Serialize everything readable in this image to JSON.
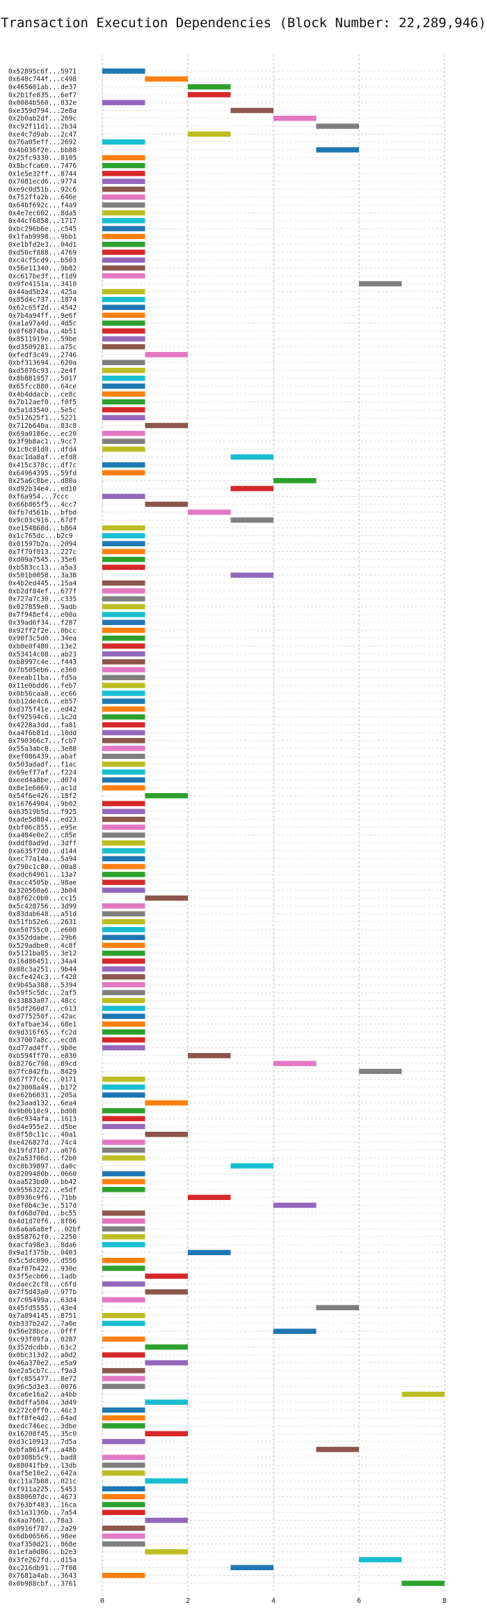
{
  "chart_data": {
    "type": "bar",
    "orientation": "horizontal",
    "title": "Transaction Execution Dependencies (Block Number: 22,289,946)",
    "xlabel": "",
    "ylabel": "",
    "xlim": [
      0,
      8
    ],
    "xticks": [
      0,
      2,
      4,
      6,
      8
    ],
    "grid": true,
    "palette": [
      "#1f77b4",
      "#ff7f0e",
      "#2ca02c",
      "#d62728",
      "#9467bd",
      "#8c564b",
      "#e377c2",
      "#7f7f7f",
      "#bcbd22",
      "#17becf"
    ],
    "transactions": [
      {
        "label": "0x52895c6f...5971",
        "start": 0,
        "end": 1
      },
      {
        "label": "0x640c744f...c498",
        "start": 1,
        "end": 2
      },
      {
        "label": "0x465601ab...de37",
        "start": 2,
        "end": 3
      },
      {
        "label": "0x2b1fe835...6ef7",
        "start": 2,
        "end": 3
      },
      {
        "label": "0x0084b560...832e",
        "start": 0,
        "end": 1
      },
      {
        "label": "0xe359d794...2e8a",
        "start": 3,
        "end": 4
      },
      {
        "label": "0x2b0ab2df...269c",
        "start": 4,
        "end": 5
      },
      {
        "label": "0xc92f11d1...2b34",
        "start": 5,
        "end": 6
      },
      {
        "label": "0xe4c7d9ab...2c47",
        "start": 2,
        "end": 3
      },
      {
        "label": "0x76a05eff...2692",
        "start": 0,
        "end": 1
      },
      {
        "label": "0x4b036f2e...bb88",
        "start": 5,
        "end": 6
      },
      {
        "label": "0x25fc9330...8105",
        "start": 0,
        "end": 1
      },
      {
        "label": "0x8bcfca60...7476",
        "start": 0,
        "end": 1
      },
      {
        "label": "0x1e5e32ff...8744",
        "start": 0,
        "end": 1
      },
      {
        "label": "0x7081ecd6...9774",
        "start": 0,
        "end": 1
      },
      {
        "label": "0xe9c0d51b...92c6",
        "start": 0,
        "end": 1
      },
      {
        "label": "0x752ffa2b...646e",
        "start": 0,
        "end": 1
      },
      {
        "label": "0x64bf692c...f4a9",
        "start": 0,
        "end": 1
      },
      {
        "label": "0x4e7ec602...8da5",
        "start": 0,
        "end": 1
      },
      {
        "label": "0x44cf6858...1717",
        "start": 0,
        "end": 1
      },
      {
        "label": "0xbc296b6e...c545",
        "start": 0,
        "end": 1
      },
      {
        "label": "0x1fab9998...9bb1",
        "start": 0,
        "end": 1
      },
      {
        "label": "0xe1bfd2e3...04d1",
        "start": 0,
        "end": 1
      },
      {
        "label": "0xd50cf888...4769",
        "start": 0,
        "end": 1
      },
      {
        "label": "0xc4cf5cd9...b503",
        "start": 0,
        "end": 1
      },
      {
        "label": "0x56e11340...9b82",
        "start": 0,
        "end": 1
      },
      {
        "label": "0xc617be3f...f1d9",
        "start": 0,
        "end": 1
      },
      {
        "label": "0x9fe4151a...3410",
        "start": 6,
        "end": 7
      },
      {
        "label": "0x44ad5b24...425a",
        "start": 0,
        "end": 1
      },
      {
        "label": "0x85d4c737...1874",
        "start": 0,
        "end": 1
      },
      {
        "label": "0x62c65f2d...4542",
        "start": 0,
        "end": 1
      },
      {
        "label": "0x7b4a94ff...9e6f",
        "start": 0,
        "end": 1
      },
      {
        "label": "0xa1a97a4d...4d5c",
        "start": 0,
        "end": 1
      },
      {
        "label": "0x0f6874ba...4b51",
        "start": 0,
        "end": 1
      },
      {
        "label": "0x8511919e...59be",
        "start": 0,
        "end": 1
      },
      {
        "label": "0xd3509281...a75c",
        "start": 0,
        "end": 1
      },
      {
        "label": "0xfedf3c49...2746",
        "start": 1,
        "end": 2
      },
      {
        "label": "0xbf313694...620a",
        "start": 0,
        "end": 1
      },
      {
        "label": "0xd5076c93...2e4f",
        "start": 0,
        "end": 1
      },
      {
        "label": "0x8b881957...5017",
        "start": 0,
        "end": 1
      },
      {
        "label": "0x65fcc880...64ce",
        "start": 0,
        "end": 1
      },
      {
        "label": "0x4b4ddacb...ce8c",
        "start": 0,
        "end": 1
      },
      {
        "label": "0x7b12aef0...f0f5",
        "start": 0,
        "end": 1
      },
      {
        "label": "0x5a1d3540...5e5c",
        "start": 0,
        "end": 1
      },
      {
        "label": "0x512625f1...5221",
        "start": 0,
        "end": 1
      },
      {
        "label": "0x712b640a...83c8",
        "start": 1,
        "end": 2
      },
      {
        "label": "0x69a0186e...ec20",
        "start": 0,
        "end": 1
      },
      {
        "label": "0x3f9b8ac1...9cc7",
        "start": 0,
        "end": 1
      },
      {
        "label": "0x1c0c01d0...dfd4",
        "start": 0,
        "end": 1
      },
      {
        "label": "0xac1da8af...efd8",
        "start": 3,
        "end": 4
      },
      {
        "label": "0x415c378c...df7c",
        "start": 0,
        "end": 1
      },
      {
        "label": "0x64964395...59fd",
        "start": 0,
        "end": 1
      },
      {
        "label": "0x25a6c8be...d80a",
        "start": 4,
        "end": 5
      },
      {
        "label": "0xd92b34e4...ed10",
        "start": 3,
        "end": 4
      },
      {
        "label": "0xf6a954...7ccc",
        "start": 0,
        "end": 1
      },
      {
        "label": "0x66b865f5...4cc7",
        "start": 1,
        "end": 2
      },
      {
        "label": "0xfb7d561b...bfbd",
        "start": 2,
        "end": 3
      },
      {
        "label": "0x9c03c916...67df",
        "start": 3,
        "end": 4
      },
      {
        "label": "0xe154868d...b864",
        "start": 0,
        "end": 1
      },
      {
        "label": "0x1c765dc...b2c9",
        "start": 0,
        "end": 1
      },
      {
        "label": "0x01597b2a...2094",
        "start": 0,
        "end": 1
      },
      {
        "label": "0x7f79f013...227c",
        "start": 0,
        "end": 1
      },
      {
        "label": "0xd09a7545...35e6",
        "start": 0,
        "end": 1
      },
      {
        "label": "0xb583cc13...a5a3",
        "start": 0,
        "end": 1
      },
      {
        "label": "0x501b0058...3a38",
        "start": 3,
        "end": 4
      },
      {
        "label": "0x4b2ed445...15a4",
        "start": 0,
        "end": 1
      },
      {
        "label": "0xb2df84ef...677f",
        "start": 0,
        "end": 1
      },
      {
        "label": "0x727a7c30...c335",
        "start": 0,
        "end": 1
      },
      {
        "label": "0x027859e0...9adb",
        "start": 0,
        "end": 1
      },
      {
        "label": "0x7f948ef4...e00a",
        "start": 0,
        "end": 1
      },
      {
        "label": "0x39ad6f34...f287",
        "start": 0,
        "end": 1
      },
      {
        "label": "0x92ff2f2e...0bcc",
        "start": 0,
        "end": 1
      },
      {
        "label": "0x90f3c5d0...34ea",
        "start": 0,
        "end": 1
      },
      {
        "label": "0xb0e0f480...13e2",
        "start": 0,
        "end": 1
      },
      {
        "label": "0x53414c08...ab23",
        "start": 0,
        "end": 1
      },
      {
        "label": "0xb8997c4e...f443",
        "start": 0,
        "end": 1
      },
      {
        "label": "0x7b505eb6...e360",
        "start": 0,
        "end": 1
      },
      {
        "label": "0xeeab11ba...fd5a",
        "start": 0,
        "end": 1
      },
      {
        "label": "0x11e0bdd6...feb7",
        "start": 0,
        "end": 1
      },
      {
        "label": "0x0b56caa8...ec66",
        "start": 0,
        "end": 1
      },
      {
        "label": "0xb12de4c6...eb57",
        "start": 0,
        "end": 1
      },
      {
        "label": "0xd375f41e...ed42",
        "start": 0,
        "end": 1
      },
      {
        "label": "0xf92594c6...1c2d",
        "start": 0,
        "end": 1
      },
      {
        "label": "0x4228a3dd...fa81",
        "start": 0,
        "end": 1
      },
      {
        "label": "0xa4f6b81d...10dd",
        "start": 0,
        "end": 1
      },
      {
        "label": "0x790366c7...fcb7",
        "start": 0,
        "end": 1
      },
      {
        "label": "0x55a3abc8...3e88",
        "start": 0,
        "end": 1
      },
      {
        "label": "0xef086439...abaf",
        "start": 0,
        "end": 1
      },
      {
        "label": "0x503adadf...f1ac",
        "start": 0,
        "end": 1
      },
      {
        "label": "0x69eff7af...f224",
        "start": 0,
        "end": 1
      },
      {
        "label": "0xeed4a8be...d074",
        "start": 0,
        "end": 1
      },
      {
        "label": "0x8e1e6069...ac1d",
        "start": 0,
        "end": 1
      },
      {
        "label": "0x54f6e426...18f2",
        "start": 1,
        "end": 2
      },
      {
        "label": "0x16764904...9b02",
        "start": 0,
        "end": 1
      },
      {
        "label": "0x63519b5d...f925",
        "start": 0,
        "end": 1
      },
      {
        "label": "0xade5d884...ed23",
        "start": 0,
        "end": 1
      },
      {
        "label": "0xbf06c855...e95e",
        "start": 0,
        "end": 1
      },
      {
        "label": "0xa484e0e2...c85e",
        "start": 0,
        "end": 1
      },
      {
        "label": "0xddf8ad9d...3dff",
        "start": 0,
        "end": 1
      },
      {
        "label": "0xa635f7d0...d144",
        "start": 0,
        "end": 1
      },
      {
        "label": "0xec77a14a...5a94",
        "start": 0,
        "end": 1
      },
      {
        "label": "0x790c1c80...00a8",
        "start": 0,
        "end": 1
      },
      {
        "label": "0xadc64961...13a7",
        "start": 0,
        "end": 1
      },
      {
        "label": "0xacc4505b...98ae",
        "start": 0,
        "end": 1
      },
      {
        "label": "0x320560a6...3b04",
        "start": 0,
        "end": 1
      },
      {
        "label": "0x8f62c0b0...cc15",
        "start": 1,
        "end": 2
      },
      {
        "label": "0x5c428756...3d99",
        "start": 0,
        "end": 1
      },
      {
        "label": "0x83dab648...a51d",
        "start": 0,
        "end": 1
      },
      {
        "label": "0x51fb52e6...2631",
        "start": 0,
        "end": 1
      },
      {
        "label": "0xe50755c0...e600",
        "start": 0,
        "end": 1
      },
      {
        "label": "0x352ddabe...29b6",
        "start": 0,
        "end": 1
      },
      {
        "label": "0x529adbe0...4c8f",
        "start": 0,
        "end": 1
      },
      {
        "label": "0x5121ba85...3e12",
        "start": 0,
        "end": 1
      },
      {
        "label": "0x16d86451...34a4",
        "start": 0,
        "end": 1
      },
      {
        "label": "0x08c3a251...9b44",
        "start": 0,
        "end": 1
      },
      {
        "label": "0xcfe424c3...f428",
        "start": 0,
        "end": 1
      },
      {
        "label": "0x9b45a388...5394",
        "start": 0,
        "end": 1
      },
      {
        "label": "0x59f5c5dc...2af5",
        "start": 0,
        "end": 1
      },
      {
        "label": "0x33883a07...48cc",
        "start": 0,
        "end": 1
      },
      {
        "label": "0x5df260d7...c613",
        "start": 0,
        "end": 1
      },
      {
        "label": "0xd775250f...42ac",
        "start": 0,
        "end": 1
      },
      {
        "label": "0xfafbae34...68e1",
        "start": 0,
        "end": 1
      },
      {
        "label": "0x9d316f65...fc2d",
        "start": 0,
        "end": 1
      },
      {
        "label": "0x37007a8c...ecd8",
        "start": 0,
        "end": 1
      },
      {
        "label": "0xd77ad4ff...9b0e",
        "start": 0,
        "end": 1
      },
      {
        "label": "0xb594ff70...e830",
        "start": 2,
        "end": 3
      },
      {
        "label": "0x8276c798...89cd",
        "start": 4,
        "end": 5
      },
      {
        "label": "0x7fc042fb...8429",
        "start": 6,
        "end": 7
      },
      {
        "label": "0x67f77c6c...0171",
        "start": 0,
        "end": 1
      },
      {
        "label": "0x23008a49...b172",
        "start": 0,
        "end": 1
      },
      {
        "label": "0xe62b6031...205a",
        "start": 0,
        "end": 1
      },
      {
        "label": "0x23aad132...6ea4",
        "start": 1,
        "end": 2
      },
      {
        "label": "0x9b0b10c9...bd08",
        "start": 0,
        "end": 1
      },
      {
        "label": "0x6c934afa...1613",
        "start": 0,
        "end": 1
      },
      {
        "label": "0xd4e955e2...d5be",
        "start": 0,
        "end": 1
      },
      {
        "label": "0x0f58c11c...40a1",
        "start": 1,
        "end": 2
      },
      {
        "label": "0xe426827d...74c4",
        "start": 0,
        "end": 1
      },
      {
        "label": "0x19fd7107...a676",
        "start": 0,
        "end": 1
      },
      {
        "label": "0x2a53f06d...f2b0",
        "start": 0,
        "end": 1
      },
      {
        "label": "0xc0b39897...da0c",
        "start": 3,
        "end": 4
      },
      {
        "label": "0x8209480b...0660",
        "start": 0,
        "end": 1
      },
      {
        "label": "0xaa523bd0...bb42",
        "start": 0,
        "end": 1
      },
      {
        "label": "0x95563222...e5df",
        "start": 0,
        "end": 1
      },
      {
        "label": "0x8936c9f6...71bb",
        "start": 2,
        "end": 3
      },
      {
        "label": "0xef0b4c3e...517d",
        "start": 4,
        "end": 5
      },
      {
        "label": "0xfd68d70d...bc55",
        "start": 0,
        "end": 1
      },
      {
        "label": "0x4d1d70f6...8f86",
        "start": 0,
        "end": 1
      },
      {
        "label": "0x6a6a6a8ef...02bf",
        "start": 0,
        "end": 1
      },
      {
        "label": "0x858762f0...2250",
        "start": 0,
        "end": 1
      },
      {
        "label": "0xacfa98e3...8da6",
        "start": 0,
        "end": 1
      },
      {
        "label": "0x9a1f375b...0403",
        "start": 2,
        "end": 3
      },
      {
        "label": "0x5c5dc090...d556",
        "start": 0,
        "end": 1
      },
      {
        "label": "0xaf07b422...930e",
        "start": 0,
        "end": 1
      },
      {
        "label": "0x3f5ecb66...1adb",
        "start": 1,
        "end": 2
      },
      {
        "label": "0xdaec2cf8...c6fd",
        "start": 0,
        "end": 1
      },
      {
        "label": "0x7f5d43a0...977b",
        "start": 1,
        "end": 2
      },
      {
        "label": "0x7c05499a...63d4",
        "start": 0,
        "end": 1
      },
      {
        "label": "0x45fd5555...43e4",
        "start": 5,
        "end": 6
      },
      {
        "label": "0x7a894145...8751",
        "start": 0,
        "end": 1
      },
      {
        "label": "0xb337b242...7a0e",
        "start": 0,
        "end": 1
      },
      {
        "label": "0x56e28bce...0fff",
        "start": 4,
        "end": 5
      },
      {
        "label": "0xc93f09fa...0287",
        "start": 0,
        "end": 1
      },
      {
        "label": "0x352dcdbb...63c2",
        "start": 1,
        "end": 2
      },
      {
        "label": "0x0bc313d2...a0d2",
        "start": 0,
        "end": 1
      },
      {
        "label": "0x46a370e2...e5a9",
        "start": 1,
        "end": 2
      },
      {
        "label": "0xe2a5cb7c...f9a3",
        "start": 0,
        "end": 1
      },
      {
        "label": "0xfc855477...8e72",
        "start": 0,
        "end": 1
      },
      {
        "label": "0x96c5d3e3...0076",
        "start": 0,
        "end": 1
      },
      {
        "label": "0xca6e16a2...a4bb",
        "start": 7,
        "end": 8
      },
      {
        "label": "0x8dffa504...3d49",
        "start": 1,
        "end": 2
      },
      {
        "label": "0x272c0ff0...46c3",
        "start": 0,
        "end": 1
      },
      {
        "label": "0xff8fe4d2...64ad",
        "start": 0,
        "end": 1
      },
      {
        "label": "0xedc746ec...3dbe",
        "start": 0,
        "end": 1
      },
      {
        "label": "0x16208f45...35c0",
        "start": 1,
        "end": 2
      },
      {
        "label": "0xd3c10913...7d5a",
        "start": 0,
        "end": 1
      },
      {
        "label": "0xbfa8614f...a48b",
        "start": 5,
        "end": 6
      },
      {
        "label": "0x0308b5c9...bad8",
        "start": 0,
        "end": 1
      },
      {
        "label": "0x88041fb9...13db",
        "start": 0,
        "end": 1
      },
      {
        "label": "0xaf5e10e2...642a",
        "start": 0,
        "end": 1
      },
      {
        "label": "0xc11a7b08...021c",
        "start": 1,
        "end": 2
      },
      {
        "label": "0xf911a225...5453",
        "start": 0,
        "end": 1
      },
      {
        "label": "0x880607dc...4673",
        "start": 0,
        "end": 1
      },
      {
        "label": "0x763bf483...16ca",
        "start": 0,
        "end": 1
      },
      {
        "label": "0x51a3136b...7a54",
        "start": 0,
        "end": 1
      },
      {
        "label": "0x4aa7601...78a3",
        "start": 1,
        "end": 2
      },
      {
        "label": "0x0916f787...2a29",
        "start": 0,
        "end": 1
      },
      {
        "label": "0x6db06566...98ee",
        "start": 0,
        "end": 1
      },
      {
        "label": "0xaf350d21...868e",
        "start": 0,
        "end": 1
      },
      {
        "label": "0x1efa0d86...b2e3",
        "start": 1,
        "end": 2
      },
      {
        "label": "0x3fe262fd...d15a",
        "start": 6,
        "end": 7
      },
      {
        "label": "0xc216db91...7f08",
        "start": 3,
        "end": 4
      },
      {
        "label": "0x7681a4ab...3643",
        "start": 0,
        "end": 1
      },
      {
        "label": "0x0b988cbf...3761",
        "start": 7,
        "end": 8
      }
    ]
  }
}
